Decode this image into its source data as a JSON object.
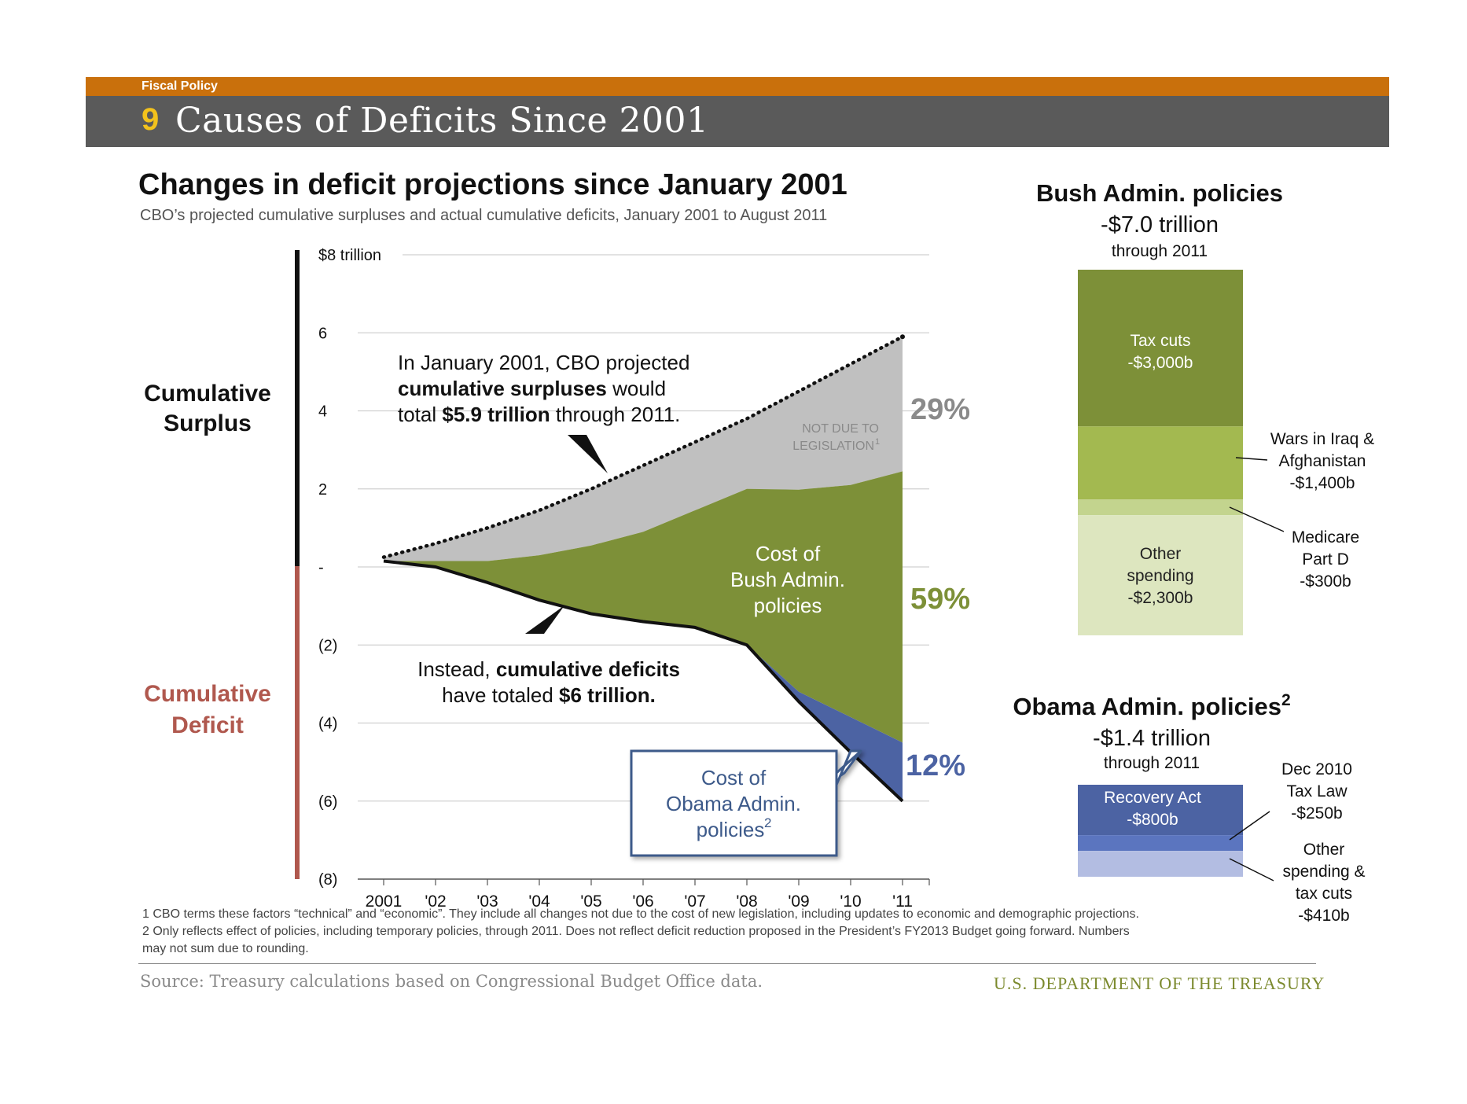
{
  "header": {
    "section": "Fiscal Policy",
    "number": "9",
    "title": "Causes of Deficits Since 2001"
  },
  "chart": {
    "title": "Changes in deficit projections since January 2001",
    "subtitle": "CBO’s projected cumulative surpluses and actual cumulative deficits, January 2001 to August 2011",
    "side_labels": {
      "surplus_line1": "Cumulative",
      "surplus_line2": "Surplus",
      "deficit_line1": "Cumulative",
      "deficit_line2": "Deficit"
    },
    "annotations": {
      "projection_line1": "In January 2001, CBO projected",
      "projection_line2a": "cumulative surpluses",
      "projection_line2b": " would",
      "projection_line3a": "total ",
      "projection_line3b": "$5.9 trillion",
      "projection_line3c": " through 2011.",
      "not_due_line1": "NOT DUE TO",
      "not_due_line2": "LEGISLATION",
      "not_due_sup": "1",
      "bush_cost_line1": "Cost of",
      "bush_cost_line2": "Bush Admin.",
      "bush_cost_line3": "policies",
      "deficit_line1a": "Instead, ",
      "deficit_line1b": "cumulative deficits",
      "deficit_line2a": "have totaled ",
      "deficit_line2b": "$6 trillion.",
      "obama_cost_line1": "Cost of",
      "obama_cost_line2": "Obama Admin.",
      "obama_cost_line3": "policies",
      "obama_cost_sup": "2",
      "pct_not_legislation": "29%",
      "pct_bush": "59%",
      "pct_obama": "12%"
    }
  },
  "chart_data": [
    {
      "type": "area",
      "y_unit_label": "$8 trillion",
      "ylim": [
        -8,
        8
      ],
      "y_ticks": [
        8,
        6,
        4,
        2,
        0,
        -2,
        -4,
        -6,
        -8
      ],
      "y_tick_labels": [
        "$8 trillion",
        "6",
        "4",
        "2",
        "-",
        "(2)",
        "(4)",
        "(6)",
        "(8)"
      ],
      "x_labels": [
        "2001",
        "'02",
        "'03",
        "'04",
        "'05",
        "'06",
        "'07",
        "'08",
        "'09",
        "'10",
        "'11"
      ],
      "grid": true,
      "series": [
        {
          "name": "Projected cumulative surplus",
          "values": [
            0.25,
            0.6,
            1.0,
            1.45,
            2.0,
            2.6,
            3.2,
            3.8,
            4.5,
            5.2,
            5.9
          ]
        },
        {
          "name": "Cost of Bush Admin. policies upper bound",
          "values": [
            0.15,
            0.15,
            0.15,
            0.3,
            0.55,
            0.9,
            1.45,
            2.0,
            1.98,
            2.1,
            2.45
          ]
        },
        {
          "name": "Cumulative deficit",
          "values": [
            0.15,
            0.0,
            -0.4,
            -0.85,
            -1.2,
            -1.4,
            -1.55,
            -2.0,
            -3.45,
            -4.75,
            -6.0
          ]
        },
        {
          "name": "Cost of Obama Admin. policies upper bound",
          "values": [
            null,
            null,
            null,
            null,
            null,
            null,
            null,
            -2.0,
            -3.2,
            -3.85,
            -4.5
          ]
        }
      ],
      "colors": {
        "not_legislation": "#c0c0c0",
        "bush": "#7d9038",
        "obama": "#4c63a3",
        "surplus_axis": "#111111",
        "deficit_axis": "#b0584e"
      }
    },
    {
      "type": "bar",
      "title": "Bush Admin. policies",
      "total": "-$7.0 trillion",
      "period": "through 2011",
      "segments": [
        {
          "name": "Tax cuts",
          "value": 3000,
          "label": "-$3,000b",
          "color": "#7d9038"
        },
        {
          "name": "Wars in Iraq & Afghanistan",
          "value": 1400,
          "label": "-$1,400b",
          "color": "#a3b950"
        },
        {
          "name": "Medicare Part D",
          "value": 300,
          "label": "-$300b",
          "color": "#c3d48e"
        },
        {
          "name": "Other spending",
          "value": 2300,
          "label": "-$2,300b",
          "color": "#dde6bf"
        }
      ],
      "callouts": {
        "wars_line1": "Wars in Iraq  &",
        "wars_line2": "Afghanistan",
        "wars_line3": "-$1,400b",
        "medicare_line1": "Medicare",
        "medicare_line2": "Part D",
        "medicare_line3": "-$300b",
        "tax_line1": "Tax cuts",
        "tax_line2": "-$3,000b",
        "other_line1": "Other",
        "other_line2": "spending",
        "other_line3": "-$2,300b"
      }
    },
    {
      "type": "bar",
      "title": "Obama Admin. policies",
      "title_sup": "2",
      "total": "-$1.4 trillion",
      "period": "through 2011",
      "segments": [
        {
          "name": "Recovery Act",
          "value": 800,
          "label": "-$800b",
          "color": "#4c63a3"
        },
        {
          "name": "Dec 2010 Tax Law",
          "value": 250,
          "label": "-$250b",
          "color": "#5b75bf"
        },
        {
          "name": "Other spending & tax cuts",
          "value": 410,
          "label": "-$410b",
          "color": "#b3bde2"
        }
      ],
      "callouts": {
        "recovery_line1": "Recovery Act",
        "recovery_line2": "-$800b",
        "taxlaw_line1": "Dec 2010",
        "taxlaw_line2": "Tax Law",
        "taxlaw_line3": "-$250b",
        "other_line1": "Other",
        "other_line2": "spending &",
        "other_line3": "tax cuts",
        "other_line4": "-$410b"
      }
    }
  ],
  "footnotes": {
    "fn1": "1 CBO terms these factors “technical” and “economic”. They include all changes not due to the cost of new legislation, including updates to economic and demographic projections.",
    "fn2a": "2 Only reflects effect of policies, including temporary policies, through 2011. Does not reflect deficit reduction proposed in the President’s FY2013 Budget going forward. Numbers",
    "fn2b": "may not sum due to rounding."
  },
  "footer": {
    "source": "Source: Treasury calculations based on Congressional Budget Office data.",
    "agency": "U.S. DEPARTMENT OF THE TREASURY"
  }
}
